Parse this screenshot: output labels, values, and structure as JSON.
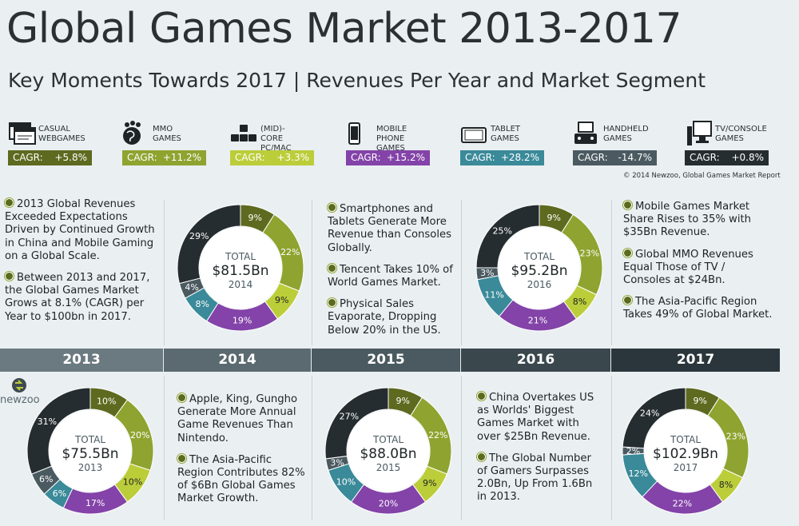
{
  "header": {
    "title": "Global Games Market 2013-2017",
    "subtitle": "Key Moments Towards 2017 | Revenues Per Year and Market Segment"
  },
  "segments": [
    {
      "name": "CASUAL\nWEBGAMES",
      "cagr_label": "CAGR:",
      "cagr": "+5.8%",
      "color": "#5d6a1f",
      "icon": "browser-windows-icon"
    },
    {
      "name": "MMO\nGAMES",
      "cagr_label": "CAGR:",
      "cagr": "+11.2%",
      "color": "#8fa330",
      "icon": "globe-icon"
    },
    {
      "name": "(MID)-CORE\nPC/MAC GAMES",
      "cagr_label": "CAGR:",
      "cagr": "+3.3%",
      "color": "#bccd3a",
      "icon": "keyboard-keys-icon"
    },
    {
      "name": "MOBILE PHONE\nGAMES",
      "cagr_label": "CAGR:",
      "cagr": "+15.2%",
      "color": "#8343a8",
      "icon": "smartphone-icon"
    },
    {
      "name": "TABLET\nGAMES",
      "cagr_label": "CAGR:",
      "cagr": "+28.2%",
      "color": "#3a8a99",
      "icon": "tablet-icon"
    },
    {
      "name": "HANDHELD\nGAMES",
      "cagr_label": "CAGR:",
      "cagr": "-14.7%",
      "color": "#4a5a60",
      "icon": "handheld-console-icon"
    },
    {
      "name": "TV/CONSOLE\nGAMES",
      "cagr_label": "CAGR:",
      "cagr": "+0.8%",
      "color": "#262d31",
      "icon": "tv-console-icon"
    }
  ],
  "credit": "© 2014 Newzoo, Global Games Market Report",
  "logo_text": "newzoo",
  "notes": [
    {
      "items": [
        "2013 Global Revenues Exceeded Expectations Driven by Continued Growth in China and Mobile Gaming on a Global Scale.",
        "Between 2013 and 2017, the Global Games Market Grows at 8.1% (CAGR) per Year to $100bn in 2017."
      ]
    },
    {
      "items": [
        "Smartphones and Tablets Generate More Revenue than Consoles Globally.",
        "Tencent Takes 10% of World Games Market.",
        "Physical Sales Evaporate, Dropping Below 20% in the US."
      ]
    },
    {
      "items": [
        "Mobile Games Market Share Rises to 35% with $35Bn Revenue.",
        "Global MMO Revenues Equal Those of TV / Consoles at $24Bn.",
        "The Asia-Pacific Region Takes 49% of Global Market."
      ]
    },
    {
      "items": [
        "Apple, King, Gungho Generate More Annual Game Revenues Than Nintendo.",
        "The Asia-Pacific Region Contributes 82% of $6Bn Global Games Market Growth."
      ]
    },
    {
      "items": [
        "China Overtakes US as Worlds' Biggest Games Market with over $25Bn Revenue.",
        "The Global Number of Gamers Surpasses 2.0Bn, Up From 1.6Bn in 2013."
      ]
    }
  ],
  "timeline": {
    "years": [
      "2013",
      "2014",
      "2015",
      "2016",
      "2017"
    ],
    "colors": [
      "#6b7a80",
      "#5a6a70",
      "#4a5a60",
      "#3a484e",
      "#2a363b"
    ]
  },
  "chart_data": [
    {
      "type": "pie",
      "year": "2013",
      "total_label": "TOTAL",
      "total": "$75.5Bn",
      "categories": [
        "Casual Webgames",
        "MMO Games",
        "(Mid)-Core PC/Mac Games",
        "Mobile Phone Games",
        "Tablet Games",
        "Handheld Games",
        "TV/Console Games"
      ],
      "values": [
        10,
        20,
        10,
        17,
        6,
        6,
        31
      ],
      "labels": [
        "10%",
        "20%",
        "10%",
        "17%",
        "6%",
        "6%",
        "31%"
      ]
    },
    {
      "type": "pie",
      "year": "2014",
      "total_label": "TOTAL",
      "total": "$81.5Bn",
      "categories": [
        "Casual Webgames",
        "MMO Games",
        "(Mid)-Core PC/Mac Games",
        "Mobile Phone Games",
        "Tablet Games",
        "Handheld Games",
        "TV/Console Games"
      ],
      "values": [
        9,
        22,
        9,
        19,
        8,
        4,
        29
      ],
      "labels": [
        "9%",
        "22%",
        "9%",
        "19%",
        "8%",
        "4%",
        "29%"
      ]
    },
    {
      "type": "pie",
      "year": "2015",
      "total_label": "TOTAL",
      "total": "$88.0Bn",
      "categories": [
        "Casual Webgames",
        "MMO Games",
        "(Mid)-Core PC/Mac Games",
        "Mobile Phone Games",
        "Tablet Games",
        "Handheld Games",
        "TV/Console Games"
      ],
      "values": [
        9,
        22,
        9,
        20,
        10,
        3,
        27
      ],
      "labels": [
        "9%",
        "22%",
        "9%",
        "20%",
        "10%",
        "3%",
        "27%"
      ]
    },
    {
      "type": "pie",
      "year": "2016",
      "total_label": "TOTAL",
      "total": "$95.2Bn",
      "categories": [
        "Casual Webgames",
        "MMO Games",
        "(Mid)-Core PC/Mac Games",
        "Mobile Phone Games",
        "Tablet Games",
        "Handheld Games",
        "TV/Console Games"
      ],
      "values": [
        9,
        23,
        8,
        21,
        11,
        3,
        25
      ],
      "labels": [
        "9%",
        "23%",
        "8%",
        "21%",
        "11%",
        "3%",
        "25%"
      ]
    },
    {
      "type": "pie",
      "year": "2017",
      "total_label": "TOTAL",
      "total": "$102.9Bn",
      "categories": [
        "Casual Webgames",
        "MMO Games",
        "(Mid)-Core PC/Mac Games",
        "Mobile Phone Games",
        "Tablet Games",
        "Handheld Games",
        "TV/Console Games"
      ],
      "values": [
        9,
        23,
        8,
        22,
        12,
        2,
        24
      ],
      "labels": [
        "9%",
        "23%",
        "8%",
        "22%",
        "12%",
        "2%",
        "24%"
      ]
    }
  ]
}
